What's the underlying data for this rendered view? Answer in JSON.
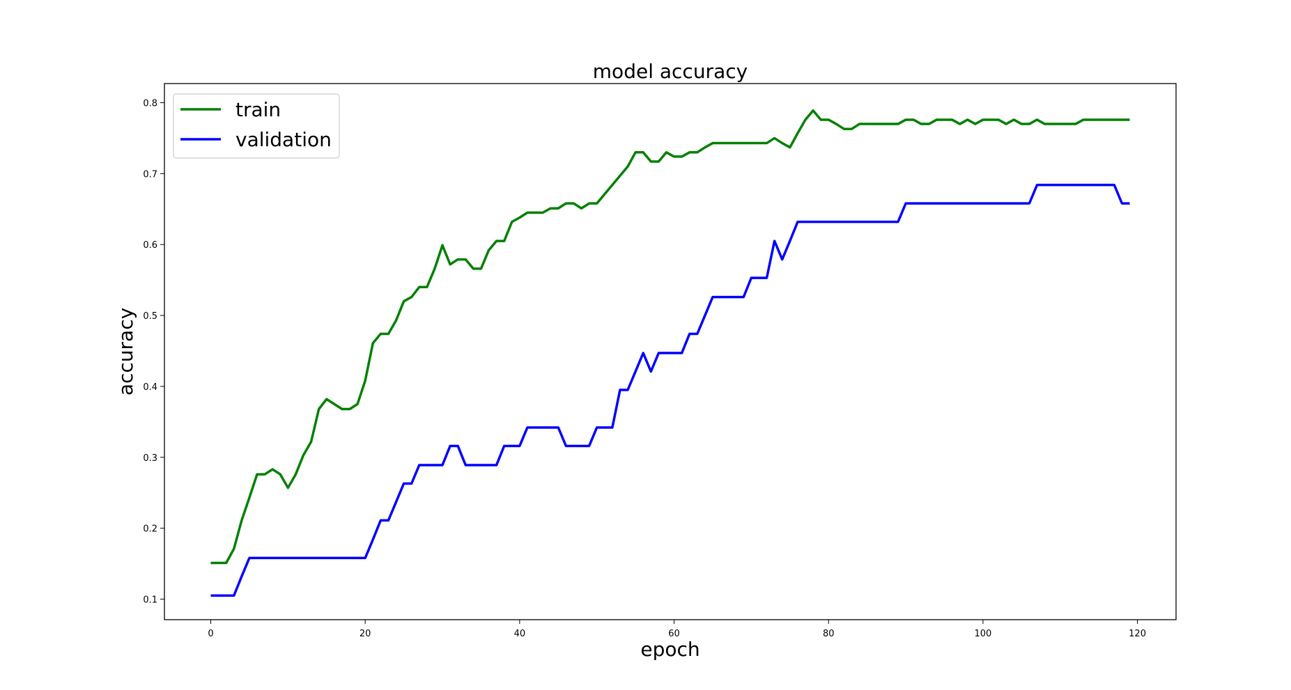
{
  "chart_data": {
    "type": "line",
    "title": "model accuracy",
    "xlabel": "epoch",
    "ylabel": "accuracy",
    "xlim": [
      -6,
      125
    ],
    "ylim": [
      0.071,
      0.827
    ],
    "xticks": [
      0,
      20,
      40,
      60,
      80,
      100,
      120
    ],
    "yticks": [
      0.1,
      0.2,
      0.3,
      0.4,
      0.5,
      0.6,
      0.7,
      0.8
    ],
    "grid": false,
    "legend_position": "top-left",
    "series": [
      {
        "name": "train",
        "color": "#008000",
        "x": [
          0,
          1,
          2,
          3,
          4,
          5,
          6,
          7,
          8,
          9,
          10,
          11,
          12,
          13,
          14,
          15,
          16,
          17,
          18,
          19,
          20,
          21,
          22,
          23,
          24,
          25,
          26,
          27,
          28,
          29,
          30,
          31,
          32,
          33,
          34,
          35,
          36,
          37,
          38,
          39,
          40,
          41,
          42,
          43,
          44,
          45,
          46,
          47,
          48,
          49,
          50,
          51,
          52,
          53,
          54,
          55,
          56,
          57,
          58,
          59,
          60,
          61,
          62,
          63,
          64,
          65,
          66,
          67,
          68,
          69,
          70,
          71,
          72,
          73,
          74,
          75,
          76,
          77,
          78,
          79,
          80,
          81,
          82,
          83,
          84,
          85,
          86,
          87,
          88,
          89,
          90,
          91,
          92,
          93,
          94,
          95,
          96,
          97,
          98,
          99,
          100,
          101,
          102,
          103,
          104,
          105,
          106,
          107,
          108,
          109,
          110,
          111,
          112,
          113,
          114,
          115,
          116,
          117,
          118,
          119
        ],
        "values": [
          0.151,
          0.151,
          0.151,
          0.171,
          0.211,
          0.243,
          0.276,
          0.276,
          0.283,
          0.276,
          0.257,
          0.276,
          0.303,
          0.322,
          0.368,
          0.382,
          0.375,
          0.368,
          0.368,
          0.375,
          0.408,
          0.461,
          0.474,
          0.474,
          0.493,
          0.52,
          0.526,
          0.54,
          0.54,
          0.566,
          0.599,
          0.572,
          0.579,
          0.579,
          0.566,
          0.566,
          0.592,
          0.605,
          0.605,
          0.632,
          0.638,
          0.645,
          0.645,
          0.645,
          0.651,
          0.651,
          0.658,
          0.658,
          0.651,
          0.658,
          0.658,
          0.671,
          0.684,
          0.697,
          0.71,
          0.73,
          0.73,
          0.717,
          0.717,
          0.73,
          0.724,
          0.724,
          0.73,
          0.73,
          0.737,
          0.743,
          0.743,
          0.743,
          0.743,
          0.743,
          0.743,
          0.743,
          0.743,
          0.75,
          0.743,
          0.737,
          0.757,
          0.776,
          0.789,
          0.776,
          0.776,
          0.77,
          0.763,
          0.763,
          0.77,
          0.77,
          0.77,
          0.77,
          0.77,
          0.77,
          0.776,
          0.776,
          0.77,
          0.77,
          0.776,
          0.776,
          0.776,
          0.77,
          0.776,
          0.77,
          0.776,
          0.776,
          0.776,
          0.77,
          0.776,
          0.77,
          0.77,
          0.776,
          0.77,
          0.77,
          0.77,
          0.77,
          0.77,
          0.776,
          0.776,
          0.776,
          0.776,
          0.776,
          0.776,
          0.776
        ]
      },
      {
        "name": "validation",
        "color": "#0000ff",
        "x": [
          0,
          1,
          2,
          3,
          4,
          5,
          6,
          7,
          8,
          9,
          10,
          11,
          12,
          13,
          14,
          15,
          16,
          17,
          18,
          19,
          20,
          21,
          22,
          23,
          24,
          25,
          26,
          27,
          28,
          29,
          30,
          31,
          32,
          33,
          34,
          35,
          36,
          37,
          38,
          39,
          40,
          41,
          42,
          43,
          44,
          45,
          46,
          47,
          48,
          49,
          50,
          51,
          52,
          53,
          54,
          55,
          56,
          57,
          58,
          59,
          60,
          61,
          62,
          63,
          64,
          65,
          66,
          67,
          68,
          69,
          70,
          71,
          72,
          73,
          74,
          75,
          76,
          77,
          78,
          79,
          80,
          81,
          82,
          83,
          84,
          85,
          86,
          87,
          88,
          89,
          90,
          91,
          92,
          93,
          94,
          95,
          96,
          97,
          98,
          99,
          100,
          101,
          102,
          103,
          104,
          105,
          106,
          107,
          108,
          109,
          110,
          111,
          112,
          113,
          114,
          115,
          116,
          117,
          118,
          119
        ],
        "values": [
          0.105,
          0.105,
          0.105,
          0.105,
          0.132,
          0.158,
          0.158,
          0.158,
          0.158,
          0.158,
          0.158,
          0.158,
          0.158,
          0.158,
          0.158,
          0.158,
          0.158,
          0.158,
          0.158,
          0.158,
          0.158,
          0.184,
          0.211,
          0.211,
          0.237,
          0.263,
          0.263,
          0.289,
          0.289,
          0.289,
          0.289,
          0.316,
          0.316,
          0.289,
          0.289,
          0.289,
          0.289,
          0.289,
          0.316,
          0.316,
          0.316,
          0.342,
          0.342,
          0.342,
          0.342,
          0.342,
          0.316,
          0.316,
          0.316,
          0.316,
          0.342,
          0.342,
          0.342,
          0.395,
          0.395,
          0.421,
          0.447,
          0.421,
          0.447,
          0.447,
          0.447,
          0.447,
          0.474,
          0.474,
          0.5,
          0.526,
          0.526,
          0.526,
          0.526,
          0.526,
          0.553,
          0.553,
          0.553,
          0.605,
          0.579,
          0.605,
          0.632,
          0.632,
          0.632,
          0.632,
          0.632,
          0.632,
          0.632,
          0.632,
          0.632,
          0.632,
          0.632,
          0.632,
          0.632,
          0.632,
          0.658,
          0.658,
          0.658,
          0.658,
          0.658,
          0.658,
          0.658,
          0.658,
          0.658,
          0.658,
          0.658,
          0.658,
          0.658,
          0.658,
          0.658,
          0.658,
          0.658,
          0.684,
          0.684,
          0.684,
          0.684,
          0.684,
          0.684,
          0.684,
          0.684,
          0.684,
          0.684,
          0.684,
          0.658,
          0.658
        ]
      }
    ]
  }
}
